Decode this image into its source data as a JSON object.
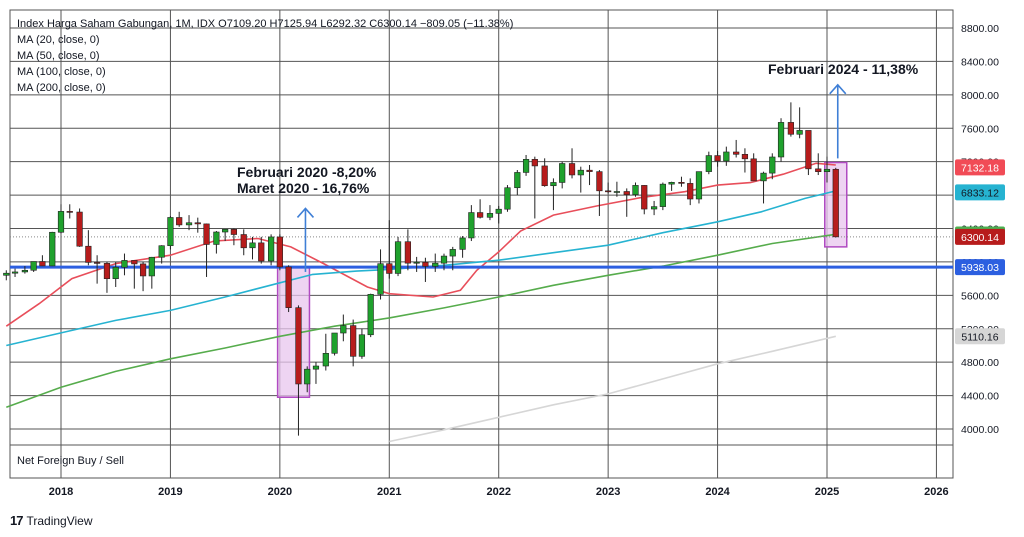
{
  "legend": {
    "title_line": "Index Harga Saham Gabungan, 1M, IDX  O7109.20  H7125.94  L6292.32  C6300.14  −809.05 (−11.38%)",
    "ma_lines": [
      "MA (20, close, 0)",
      "MA (50, close, 0)",
      "MA (100, close, 0)",
      "MA (200, close, 0)"
    ]
  },
  "subpane_label": "Net Foreign Buy / Sell",
  "brand": {
    "icon": "tradingview-logo-icon",
    "logo_text": "17",
    "name": "TradingView"
  },
  "annotations": {
    "feb2024": "Februari 2024 - 11,38%",
    "feb2020": "Februari 2020 -8,20%",
    "mar2020": "Maret 2020 - 16,76%"
  },
  "colors": {
    "up": "#1fa12d",
    "down": "#b71c1c",
    "ma20": "#e84e5a",
    "ma50": "#26b3d1",
    "ma100": "#56ac4c",
    "ma200": "#d6d6d6",
    "highlight_fill": "#e8c6ee",
    "highlight_stroke": "#b04bc2",
    "support_line": "#2c5fe0",
    "arrow": "#3f7fd6",
    "grid": "#555555"
  },
  "chart_data": {
    "type": "candlestick",
    "title": "Index Harga Saham Gabungan, 1M, IDX",
    "ylim": [
      3800,
      9000
    ],
    "y_axis_ticks": [
      4000,
      4400,
      4800,
      5200,
      5600,
      6000,
      6400,
      6800,
      7200,
      7600,
      8000,
      8400,
      8800
    ],
    "y_tick_labels": [
      "4000.00",
      "4400.00",
      "4800.00",
      "5200.00",
      "5600.00",
      "6000.00",
      "6400.00",
      "6800.00",
      "7200.00",
      "7600.00",
      "8000.00",
      "8400.00",
      "8800.00"
    ],
    "x_axis_labels": [
      "2018",
      "2019",
      "2020",
      "2021",
      "2022",
      "2023",
      "2024",
      "2025",
      "2026"
    ],
    "x_range": [
      2017.5,
      2026.1
    ],
    "candles": [
      {
        "t": 2017.5,
        "o": 5840,
        "h": 5900,
        "l": 5780,
        "c": 5865
      },
      {
        "t": 2017.58,
        "o": 5865,
        "h": 5920,
        "l": 5820,
        "c": 5880
      },
      {
        "t": 2017.67,
        "o": 5880,
        "h": 5950,
        "l": 5860,
        "c": 5900
      },
      {
        "t": 2017.75,
        "o": 5900,
        "h": 6000,
        "l": 5880,
        "c": 6005
      },
      {
        "t": 2017.83,
        "o": 6005,
        "h": 6080,
        "l": 5950,
        "c": 5952
      },
      {
        "t": 2017.92,
        "o": 5952,
        "h": 6360,
        "l": 5950,
        "c": 6355
      },
      {
        "t": 2018.0,
        "o": 6355,
        "h": 6690,
        "l": 6340,
        "c": 6605
      },
      {
        "t": 2018.08,
        "o": 6605,
        "h": 6690,
        "l": 6520,
        "c": 6597
      },
      {
        "t": 2018.17,
        "o": 6597,
        "h": 6640,
        "l": 6180,
        "c": 6188
      },
      {
        "t": 2018.25,
        "o": 6188,
        "h": 6380,
        "l": 5960,
        "c": 5994
      },
      {
        "t": 2018.33,
        "o": 5994,
        "h": 6080,
        "l": 5740,
        "c": 5983
      },
      {
        "t": 2018.42,
        "o": 5983,
        "h": 6000,
        "l": 5630,
        "c": 5799
      },
      {
        "t": 2018.5,
        "o": 5799,
        "h": 6000,
        "l": 5700,
        "c": 5936
      },
      {
        "t": 2018.58,
        "o": 5936,
        "h": 6100,
        "l": 5840,
        "c": 6018
      },
      {
        "t": 2018.67,
        "o": 6018,
        "h": 6000,
        "l": 5680,
        "c": 5976
      },
      {
        "t": 2018.75,
        "o": 5976,
        "h": 6000,
        "l": 5650,
        "c": 5832
      },
      {
        "t": 2018.83,
        "o": 5832,
        "h": 6060,
        "l": 5680,
        "c": 6056
      },
      {
        "t": 2018.92,
        "o": 6056,
        "h": 6200,
        "l": 5980,
        "c": 6194
      },
      {
        "t": 2019.0,
        "o": 6194,
        "h": 6550,
        "l": 6150,
        "c": 6532
      },
      {
        "t": 2019.08,
        "o": 6532,
        "h": 6600,
        "l": 6420,
        "c": 6443
      },
      {
        "t": 2019.17,
        "o": 6443,
        "h": 6560,
        "l": 6380,
        "c": 6469
      },
      {
        "t": 2019.25,
        "o": 6469,
        "h": 6530,
        "l": 6350,
        "c": 6455
      },
      {
        "t": 2019.33,
        "o": 6455,
        "h": 6460,
        "l": 5820,
        "c": 6209
      },
      {
        "t": 2019.42,
        "o": 6209,
        "h": 6370,
        "l": 6100,
        "c": 6358
      },
      {
        "t": 2019.5,
        "o": 6358,
        "h": 6390,
        "l": 6250,
        "c": 6390
      },
      {
        "t": 2019.58,
        "o": 6390,
        "h": 6400,
        "l": 6200,
        "c": 6328
      },
      {
        "t": 2019.67,
        "o": 6328,
        "h": 6390,
        "l": 6080,
        "c": 6169
      },
      {
        "t": 2019.75,
        "o": 6169,
        "h": 6300,
        "l": 6030,
        "c": 6228
      },
      {
        "t": 2019.83,
        "o": 6228,
        "h": 6300,
        "l": 5980,
        "c": 6011
      },
      {
        "t": 2019.92,
        "o": 6011,
        "h": 6330,
        "l": 5960,
        "c": 6299
      },
      {
        "t": 2020.0,
        "o": 6299,
        "h": 6330,
        "l": 5900,
        "c": 5940
      },
      {
        "t": 2020.08,
        "o": 5940,
        "h": 5960,
        "l": 5400,
        "c": 5452
      },
      {
        "t": 2020.17,
        "o": 5452,
        "h": 5480,
        "l": 3920,
        "c": 4539
      },
      {
        "t": 2020.25,
        "o": 4539,
        "h": 4750,
        "l": 4440,
        "c": 4716
      },
      {
        "t": 2020.33,
        "o": 4716,
        "h": 4800,
        "l": 4540,
        "c": 4754
      },
      {
        "t": 2020.42,
        "o": 4754,
        "h": 5140,
        "l": 4700,
        "c": 4906
      },
      {
        "t": 2020.5,
        "o": 4906,
        "h": 5120,
        "l": 4880,
        "c": 5149
      },
      {
        "t": 2020.58,
        "o": 5149,
        "h": 5370,
        "l": 5050,
        "c": 5238
      },
      {
        "t": 2020.67,
        "o": 5238,
        "h": 5310,
        "l": 4750,
        "c": 4870
      },
      {
        "t": 2020.75,
        "o": 4870,
        "h": 5200,
        "l": 4840,
        "c": 5128
      },
      {
        "t": 2020.83,
        "o": 5128,
        "h": 5620,
        "l": 5100,
        "c": 5612
      },
      {
        "t": 2020.92,
        "o": 5612,
        "h": 6150,
        "l": 5550,
        "c": 5979
      },
      {
        "t": 2021.0,
        "o": 5979,
        "h": 6500,
        "l": 5800,
        "c": 5862
      },
      {
        "t": 2021.08,
        "o": 5862,
        "h": 6300,
        "l": 5830,
        "c": 6242
      },
      {
        "t": 2021.17,
        "o": 6242,
        "h": 6390,
        "l": 5900,
        "c": 5985
      },
      {
        "t": 2021.25,
        "o": 5985,
        "h": 6060,
        "l": 5880,
        "c": 5996
      },
      {
        "t": 2021.33,
        "o": 5996,
        "h": 6050,
        "l": 5760,
        "c": 5947
      },
      {
        "t": 2021.42,
        "o": 5947,
        "h": 6100,
        "l": 5880,
        "c": 5985
      },
      {
        "t": 2021.5,
        "o": 5985,
        "h": 6100,
        "l": 5900,
        "c": 6070
      },
      {
        "t": 2021.58,
        "o": 6070,
        "h": 6180,
        "l": 5900,
        "c": 6150
      },
      {
        "t": 2021.67,
        "o": 6150,
        "h": 6310,
        "l": 6050,
        "c": 6287
      },
      {
        "t": 2021.75,
        "o": 6287,
        "h": 6680,
        "l": 6250,
        "c": 6591
      },
      {
        "t": 2021.83,
        "o": 6591,
        "h": 6750,
        "l": 6520,
        "c": 6534
      },
      {
        "t": 2021.92,
        "o": 6534,
        "h": 6680,
        "l": 6500,
        "c": 6581
      },
      {
        "t": 2022.0,
        "o": 6581,
        "h": 6670,
        "l": 6460,
        "c": 6631
      },
      {
        "t": 2022.08,
        "o": 6631,
        "h": 6920,
        "l": 6600,
        "c": 6888
      },
      {
        "t": 2022.17,
        "o": 6888,
        "h": 7100,
        "l": 6800,
        "c": 7071
      },
      {
        "t": 2022.25,
        "o": 7071,
        "h": 7280,
        "l": 7030,
        "c": 7228
      },
      {
        "t": 2022.33,
        "o": 7228,
        "h": 7260,
        "l": 6520,
        "c": 7149
      },
      {
        "t": 2022.42,
        "o": 7149,
        "h": 7240,
        "l": 6900,
        "c": 6912
      },
      {
        "t": 2022.5,
        "o": 6912,
        "h": 7000,
        "l": 6620,
        "c": 6951
      },
      {
        "t": 2022.58,
        "o": 6951,
        "h": 7200,
        "l": 6880,
        "c": 7178
      },
      {
        "t": 2022.67,
        "o": 7178,
        "h": 7360,
        "l": 7000,
        "c": 7041
      },
      {
        "t": 2022.75,
        "o": 7041,
        "h": 7140,
        "l": 6830,
        "c": 7098
      },
      {
        "t": 2022.83,
        "o": 7098,
        "h": 7160,
        "l": 6920,
        "c": 7081
      },
      {
        "t": 2022.92,
        "o": 7081,
        "h": 7100,
        "l": 6550,
        "c": 6851
      },
      {
        "t": 2023.0,
        "o": 6851,
        "h": 6950,
        "l": 6820,
        "c": 6839
      },
      {
        "t": 2023.08,
        "o": 6839,
        "h": 6960,
        "l": 6780,
        "c": 6843
      },
      {
        "t": 2023.17,
        "o": 6843,
        "h": 6880,
        "l": 6540,
        "c": 6805
      },
      {
        "t": 2023.25,
        "o": 6805,
        "h": 6950,
        "l": 6780,
        "c": 6916
      },
      {
        "t": 2023.33,
        "o": 6916,
        "h": 6920,
        "l": 6570,
        "c": 6633
      },
      {
        "t": 2023.42,
        "o": 6633,
        "h": 6730,
        "l": 6560,
        "c": 6662
      },
      {
        "t": 2023.5,
        "o": 6662,
        "h": 6950,
        "l": 6620,
        "c": 6931
      },
      {
        "t": 2023.58,
        "o": 6931,
        "h": 6960,
        "l": 6850,
        "c": 6953
      },
      {
        "t": 2023.67,
        "o": 6953,
        "h": 7020,
        "l": 6900,
        "c": 6940
      },
      {
        "t": 2023.75,
        "o": 6940,
        "h": 7000,
        "l": 6680,
        "c": 6753
      },
      {
        "t": 2023.83,
        "o": 6753,
        "h": 7080,
        "l": 6700,
        "c": 7081
      },
      {
        "t": 2023.92,
        "o": 7081,
        "h": 7320,
        "l": 7050,
        "c": 7273
      },
      {
        "t": 2024.0,
        "o": 7273,
        "h": 7330,
        "l": 7140,
        "c": 7208
      },
      {
        "t": 2024.08,
        "o": 7208,
        "h": 7380,
        "l": 7150,
        "c": 7316
      },
      {
        "t": 2024.17,
        "o": 7316,
        "h": 7460,
        "l": 7250,
        "c": 7288
      },
      {
        "t": 2024.25,
        "o": 7288,
        "h": 7360,
        "l": 7070,
        "c": 7234
      },
      {
        "t": 2024.33,
        "o": 7234,
        "h": 7300,
        "l": 6980,
        "c": 6970
      },
      {
        "t": 2024.42,
        "o": 6970,
        "h": 7080,
        "l": 6700,
        "c": 7063
      },
      {
        "t": 2024.5,
        "o": 7063,
        "h": 7300,
        "l": 6990,
        "c": 7256
      },
      {
        "t": 2024.58,
        "o": 7256,
        "h": 7720,
        "l": 7200,
        "c": 7670
      },
      {
        "t": 2024.67,
        "o": 7670,
        "h": 7910,
        "l": 7500,
        "c": 7528
      },
      {
        "t": 2024.75,
        "o": 7528,
        "h": 7850,
        "l": 7480,
        "c": 7574
      },
      {
        "t": 2024.83,
        "o": 7574,
        "h": 7570,
        "l": 7040,
        "c": 7114
      },
      {
        "t": 2024.92,
        "o": 7114,
        "h": 7300,
        "l": 7040,
        "c": 7080
      },
      {
        "t": 2025.0,
        "o": 7080,
        "h": 7260,
        "l": 6950,
        "c": 7109
      },
      {
        "t": 2025.08,
        "o": 7109,
        "h": 7126,
        "l": 6292,
        "c": 6300
      }
    ],
    "series": [
      {
        "name": "MA (20, close, 0)",
        "x": [
          2017.5,
          2017.8,
          2018.1,
          2018.5,
          2019.0,
          2019.4,
          2019.8,
          2020.1,
          2020.4,
          2020.8,
          2021.0,
          2021.4,
          2021.65,
          2021.8,
          2022.0,
          2022.2,
          2022.5,
          2022.9,
          2023.3,
          2023.7,
          2024.0,
          2024.3,
          2024.6,
          2024.9,
          2025.08
        ],
        "y": [
          5230,
          5500,
          5800,
          5980,
          6080,
          6250,
          6280,
          6180,
          5980,
          5700,
          5620,
          5580,
          5660,
          5900,
          6120,
          6370,
          6560,
          6670,
          6770,
          6840,
          6920,
          6950,
          7050,
          7180,
          7160
        ]
      },
      {
        "name": "MA (50, close, 0)",
        "x": [
          2017.5,
          2018.0,
          2018.5,
          2019.0,
          2019.5,
          2020.0,
          2020.3,
          2020.7,
          2021.0,
          2021.5,
          2022.0,
          2022.5,
          2023.0,
          2023.5,
          2024.0,
          2024.4,
          2024.8,
          2025.08
        ],
        "y": [
          5000,
          5150,
          5300,
          5420,
          5580,
          5750,
          5850,
          5890,
          5910,
          5960,
          6020,
          6110,
          6200,
          6350,
          6480,
          6600,
          6760,
          6850
        ]
      },
      {
        "name": "MA (100, close, 0)",
        "x": [
          2017.5,
          2018.0,
          2018.5,
          2019.0,
          2019.5,
          2020.0,
          2020.5,
          2021.0,
          2021.5,
          2022.0,
          2022.5,
          2023.0,
          2023.5,
          2024.0,
          2024.5,
          2025.08
        ],
        "y": [
          4260,
          4500,
          4690,
          4840,
          4970,
          5110,
          5230,
          5330,
          5450,
          5580,
          5720,
          5840,
          5950,
          6080,
          6220,
          6330
        ]
      },
      {
        "name": "MA (200, close, 0)",
        "x": [
          2021.0,
          2021.5,
          2022.0,
          2022.5,
          2023.0,
          2023.5,
          2024.0,
          2024.5,
          2025.08
        ],
        "y": [
          3850,
          3990,
          4140,
          4290,
          4420,
          4600,
          4780,
          4930,
          5110
        ]
      }
    ],
    "price_labels": [
      {
        "label": "7132.18",
        "value": 7132.18,
        "color": "#f14b56",
        "text_color": "#ffffff"
      },
      {
        "label": "6833.12",
        "value": 6833.12,
        "color": "#26b3d1",
        "text_color": "#131722"
      },
      {
        "label": "6328.87",
        "value": 6328.87,
        "color": "#4caf50",
        "text_color": "#ffffff"
      },
      {
        "label": "6300.14",
        "value": 6300.14,
        "color": "#b71c1c",
        "text_color": "#ffffff"
      },
      {
        "label": "5938.03",
        "value": 5938.03,
        "color": "#2c5fe0",
        "text_color": "#ffffff"
      },
      {
        "label": "5110.16",
        "value": 5110.16,
        "color": "#d6d6d6",
        "text_color": "#131722"
      }
    ],
    "support_level": 5938.03,
    "highlights": [
      {
        "t0": 2020.08,
        "t1": 2020.17,
        "y_low": 4380,
        "y_high": 5930
      },
      {
        "t0": 2025.08,
        "t1": 2025.08,
        "y_low": 6180,
        "y_high": 7190
      }
    ],
    "arrows": [
      {
        "t": 2025.08,
        "y_from": 7240,
        "y_to": 8120
      },
      {
        "t": 2020.17,
        "y_from": 5880,
        "y_to": 6640
      }
    ],
    "grid": true
  }
}
